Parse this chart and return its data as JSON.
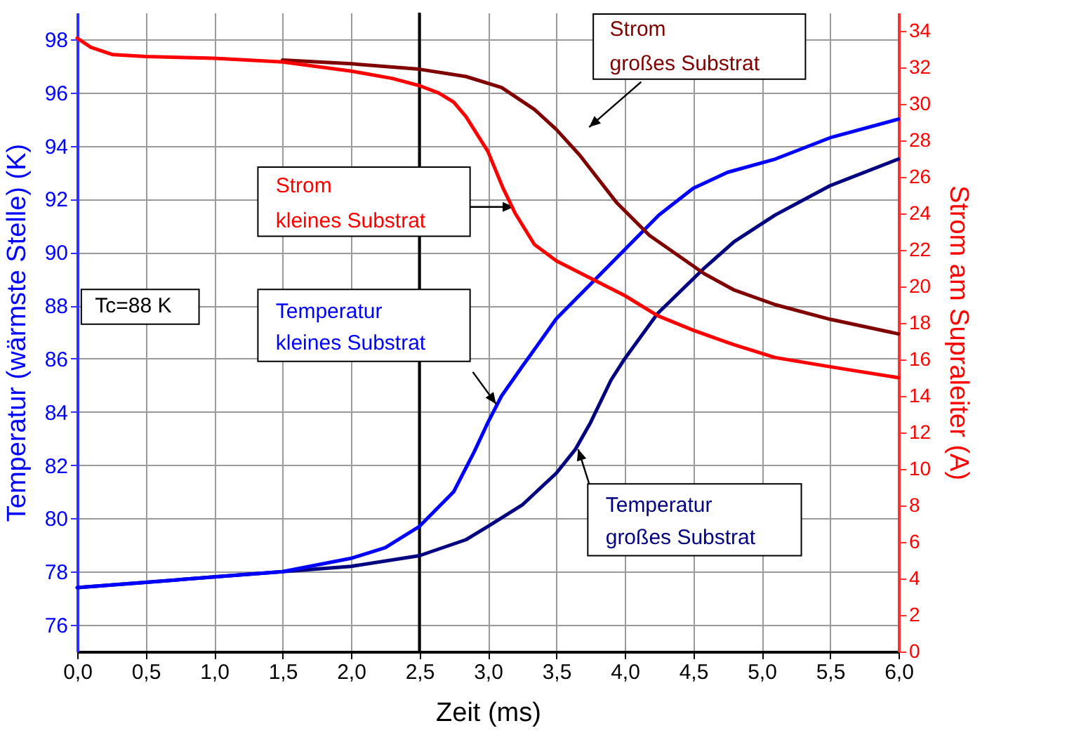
{
  "chart_data": {
    "type": "line",
    "xlabel": "Zeit (ms)",
    "ylabel": "Temperatur (wärmste Stelle) (K)",
    "y2label": "Strom am Supraleiter (A)",
    "xlim": [
      0,
      6
    ],
    "xticks": [
      {
        "value": 0,
        "label": "0,0"
      },
      {
        "value": 0.5,
        "label": "0,5"
      },
      {
        "value": 1,
        "label": "1,0"
      },
      {
        "value": 1.5,
        "label": "1,5"
      },
      {
        "value": 2,
        "label": "2,0"
      },
      {
        "value": 2.5,
        "label": "2,5"
      },
      {
        "value": 3,
        "label": "3,0"
      },
      {
        "value": 3.5,
        "label": "3,5"
      },
      {
        "value": 4,
        "label": "4,0"
      },
      {
        "value": 4.5,
        "label": "4,5"
      },
      {
        "value": 5,
        "label": "5,0"
      },
      {
        "value": 5.5,
        "label": "5,5"
      },
      {
        "value": 6,
        "label": "6,0"
      }
    ],
    "ylim": [
      75,
      99
    ],
    "yticks": [
      76,
      78,
      80,
      82,
      84,
      86,
      88,
      90,
      92,
      94,
      96,
      98
    ],
    "y2lim": [
      0,
      35
    ],
    "y2ticks": [
      0,
      2,
      4,
      6,
      8,
      10,
      12,
      14,
      16,
      18,
      20,
      22,
      24,
      26,
      28,
      30,
      32,
      34
    ],
    "grid": true,
    "line_style": "solid",
    "marker": "none",
    "series": [
      {
        "name": "Temperatur kleines Substrat",
        "color": "#0000ff",
        "x": [
          0,
          0.5,
          1,
          1.5,
          2,
          2.25,
          2.5,
          2.75,
          2.9,
          3,
          3.1,
          3.25,
          3.5,
          3.75,
          4,
          4.25,
          4.5,
          4.75,
          5.1,
          5.5,
          6
        ],
        "values": [
          77.4,
          77.6,
          77.8,
          78.0,
          78.5,
          78.9,
          79.7,
          81.0,
          82.5,
          83.6,
          84.6,
          85.7,
          87.5,
          88.8,
          90.1,
          91.4,
          92.4,
          93.0,
          93.5,
          94.3,
          95.0
        ]
      },
      {
        "name": "Temperatur großes Substrat",
        "color": "#000080",
        "x": [
          0,
          0.5,
          1,
          1.5,
          2,
          2.5,
          2.84,
          3,
          3.25,
          3.5,
          3.64,
          3.75,
          3.9,
          4,
          4.24,
          4.58,
          4.8,
          5.1,
          5.5,
          6
        ],
        "values": [
          77.4,
          77.6,
          77.8,
          78.0,
          78.2,
          78.6,
          79.2,
          79.7,
          80.5,
          81.7,
          82.6,
          83.6,
          85.2,
          86.0,
          87.7,
          89.4,
          90.4,
          91.4,
          92.5,
          93.5
        ]
      },
      {
        "name": "Strom kleines Substrat",
        "color": "#ff0000",
        "axis": "y2",
        "x": [
          0,
          0.1,
          0.26,
          0.5,
          1,
          1.5,
          2,
          2.3,
          2.5,
          2.64,
          2.75,
          2.84,
          3,
          3.11,
          3.2,
          3.34,
          3.5,
          3.79,
          4,
          4.24,
          4.5,
          4.8,
          5.1,
          5.5,
          6
        ],
        "values": [
          33.6,
          33.1,
          32.7,
          32.6,
          32.5,
          32.3,
          31.8,
          31.4,
          31.0,
          30.6,
          30.1,
          29.3,
          27.4,
          25.4,
          24.0,
          22.3,
          21.4,
          20.3,
          19.5,
          18.4,
          17.6,
          16.8,
          16.1,
          15.6,
          15.0
        ]
      },
      {
        "name": "Strom großes Substrat",
        "color": "#800000",
        "axis": "y2",
        "x": [
          1.5,
          2,
          2.5,
          2.84,
          3.1,
          3.34,
          3.5,
          3.67,
          3.94,
          4.18,
          4.58,
          4.8,
          5.1,
          5.5,
          6
        ],
        "values": [
          32.4,
          32.2,
          31.9,
          31.5,
          30.9,
          29.7,
          28.6,
          27.2,
          24.6,
          22.8,
          20.7,
          19.8,
          19.0,
          18.2,
          17.4
        ]
      }
    ],
    "ref_lines": [
      {
        "axis": "x",
        "value": 2.5,
        "color": "#000000"
      }
    ],
    "annotations": [
      "Tc=88 K"
    ]
  }
}
